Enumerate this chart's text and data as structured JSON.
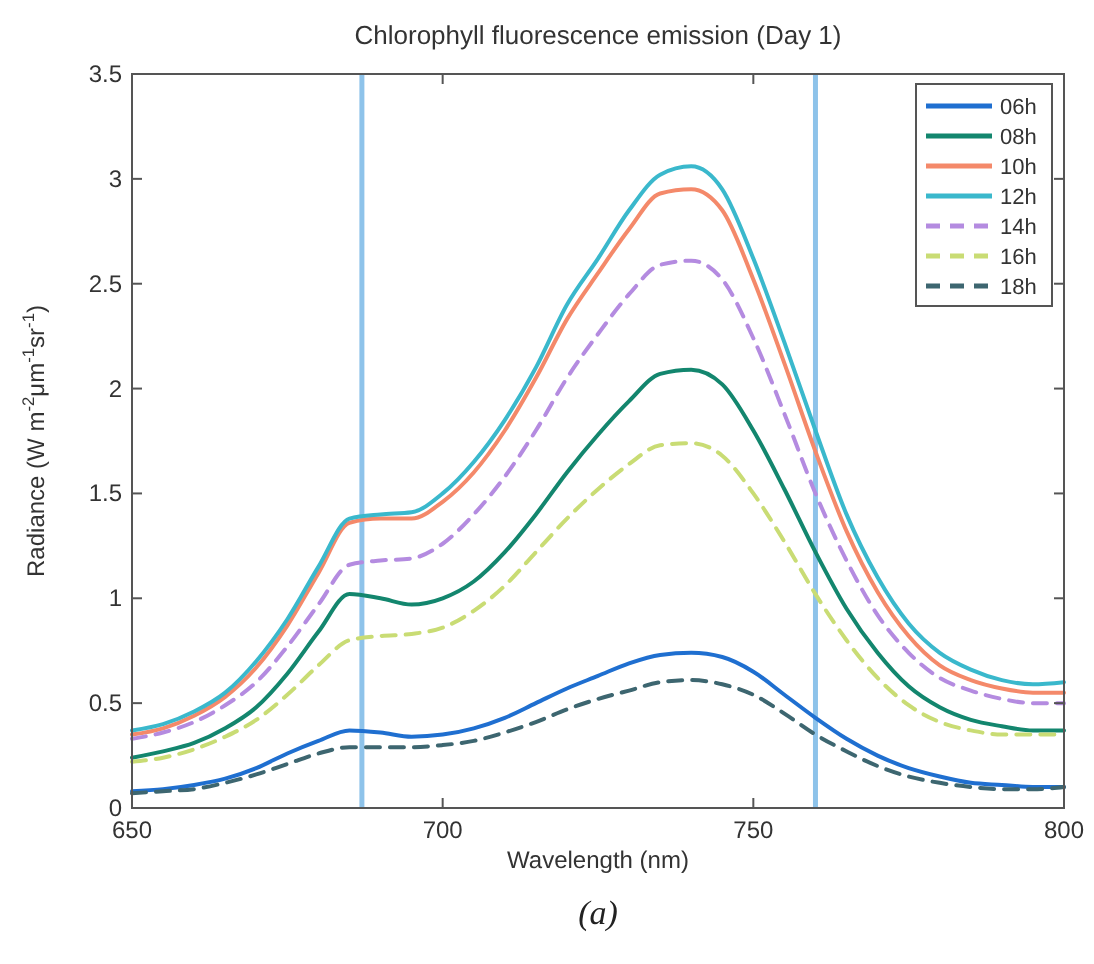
{
  "chart_data": {
    "type": "line",
    "title": "Chlorophyll fluorescence emission (Day 1)",
    "xlabel": "Wavelength (nm)",
    "ylabel": "Radiance (W m$^{-2}$μm$^{-1}$sr$^{-1}$)",
    "annotations": [
      "(a)"
    ],
    "x": [
      650,
      655,
      660,
      665,
      670,
      675,
      680,
      685,
      690,
      695,
      700,
      705,
      710,
      715,
      720,
      725,
      730,
      735,
      740,
      745,
      750,
      755,
      760,
      765,
      770,
      775,
      780,
      785,
      790,
      795,
      800
    ],
    "xlim": [
      650,
      800
    ],
    "xticks": [
      650,
      700,
      750,
      800
    ],
    "ylim": [
      0,
      3.5
    ],
    "yticks": [
      0,
      0.5,
      1,
      1.5,
      2,
      2.5,
      3,
      3.5
    ],
    "grid": false,
    "legend": "top right",
    "marker": "none",
    "ref_lines": [
      {
        "axis": "x",
        "value": 687,
        "color": "#8ec3ea"
      },
      {
        "axis": "x",
        "value": 760,
        "color": "#8ec3ea"
      }
    ],
    "series": [
      {
        "name": "06h",
        "color": "#1f6fd0",
        "line_style": "solid",
        "values": [
          0.08,
          0.09,
          0.11,
          0.14,
          0.19,
          0.26,
          0.32,
          0.37,
          0.36,
          0.34,
          0.35,
          0.38,
          0.43,
          0.5,
          0.57,
          0.63,
          0.69,
          0.73,
          0.74,
          0.72,
          0.65,
          0.54,
          0.43,
          0.33,
          0.25,
          0.19,
          0.15,
          0.12,
          0.11,
          0.1,
          0.1
        ]
      },
      {
        "name": "08h",
        "color": "#13866e",
        "line_style": "solid",
        "values": [
          0.24,
          0.27,
          0.31,
          0.38,
          0.48,
          0.64,
          0.84,
          1.02,
          1.0,
          0.97,
          1.0,
          1.08,
          1.22,
          1.4,
          1.6,
          1.78,
          1.94,
          2.07,
          2.09,
          2.02,
          1.8,
          1.52,
          1.22,
          0.95,
          0.74,
          0.58,
          0.48,
          0.42,
          0.39,
          0.37,
          0.37
        ]
      },
      {
        "name": "10h",
        "color": "#f4896a",
        "line_style": "solid",
        "values": [
          0.35,
          0.38,
          0.44,
          0.53,
          0.67,
          0.87,
          1.12,
          1.36,
          1.38,
          1.38,
          1.46,
          1.6,
          1.8,
          2.05,
          2.33,
          2.55,
          2.76,
          2.93,
          2.95,
          2.85,
          2.52,
          2.12,
          1.7,
          1.32,
          1.03,
          0.82,
          0.68,
          0.61,
          0.57,
          0.55,
          0.55
        ]
      },
      {
        "name": "12h",
        "color": "#3ab8cc",
        "line_style": "solid",
        "values": [
          0.37,
          0.4,
          0.46,
          0.55,
          0.7,
          0.9,
          1.15,
          1.38,
          1.4,
          1.41,
          1.5,
          1.65,
          1.85,
          2.1,
          2.4,
          2.62,
          2.85,
          3.02,
          3.06,
          2.95,
          2.62,
          2.22,
          1.8,
          1.4,
          1.1,
          0.88,
          0.74,
          0.66,
          0.61,
          0.59,
          0.6
        ]
      },
      {
        "name": "14h",
        "color": "#b48be0",
        "line_style": "dashed",
        "values": [
          0.33,
          0.36,
          0.41,
          0.49,
          0.6,
          0.77,
          0.97,
          1.16,
          1.18,
          1.19,
          1.26,
          1.4,
          1.58,
          1.8,
          2.05,
          2.26,
          2.45,
          2.59,
          2.61,
          2.52,
          2.24,
          1.88,
          1.5,
          1.18,
          0.92,
          0.74,
          0.62,
          0.56,
          0.52,
          0.5,
          0.5
        ]
      },
      {
        "name": "16h",
        "color": "#c9dc74",
        "line_style": "dashed",
        "values": [
          0.22,
          0.24,
          0.28,
          0.34,
          0.42,
          0.54,
          0.68,
          0.8,
          0.82,
          0.83,
          0.86,
          0.94,
          1.06,
          1.22,
          1.38,
          1.52,
          1.64,
          1.73,
          1.74,
          1.68,
          1.5,
          1.27,
          1.02,
          0.8,
          0.62,
          0.49,
          0.41,
          0.37,
          0.35,
          0.35,
          0.35
        ]
      },
      {
        "name": "18h",
        "color": "#3d6670",
        "line_style": "dashed",
        "values": [
          0.07,
          0.08,
          0.09,
          0.12,
          0.16,
          0.21,
          0.26,
          0.29,
          0.29,
          0.29,
          0.3,
          0.32,
          0.36,
          0.41,
          0.47,
          0.52,
          0.56,
          0.6,
          0.61,
          0.59,
          0.54,
          0.45,
          0.35,
          0.27,
          0.2,
          0.15,
          0.12,
          0.1,
          0.09,
          0.09,
          0.1
        ]
      }
    ]
  }
}
